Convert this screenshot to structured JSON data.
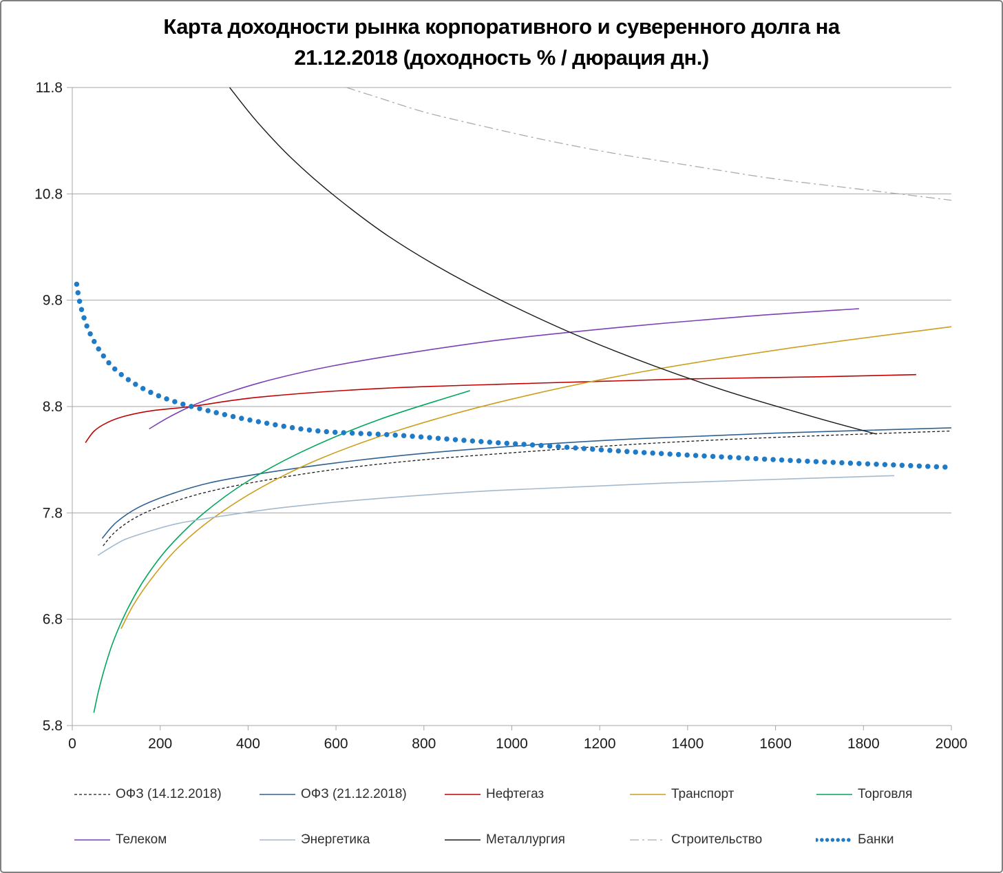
{
  "title": {
    "line1": "Карта доходности рынка корпоративного и суверенного долга на",
    "line2": "21.12.2018 (доходность % / дюрация дн.)"
  },
  "chart_data": {
    "type": "line",
    "title": "Карта доходности рынка корпоративного и суверенного долга на 21.12.2018 (доходность % / дюрация дн.)",
    "xlabel": "",
    "ylabel": "",
    "xlim": [
      0,
      2000
    ],
    "ylim": [
      5.8,
      11.8
    ],
    "x_ticks": [
      0,
      200,
      400,
      600,
      800,
      1000,
      1200,
      1400,
      1600,
      1800,
      2000
    ],
    "y_ticks": [
      5.8,
      6.8,
      7.8,
      8.8,
      9.8,
      10.8,
      11.8
    ],
    "grid": "horizontal",
    "grid_color": "#A6A6A6",
    "axis_color": "#A6A6A6",
    "legend_position": "bottom",
    "series": [
      {
        "name": "ОФЗ (14.12.2018)",
        "color": "#1A1A1A",
        "width": 1.3,
        "dash": "4 3",
        "marker": "none",
        "points": [
          [
            70,
            7.49
          ],
          [
            100,
            7.63
          ],
          [
            150,
            7.77
          ],
          [
            220,
            7.89
          ],
          [
            310,
            8.0
          ],
          [
            430,
            8.1
          ],
          [
            600,
            8.21
          ],
          [
            800,
            8.3
          ],
          [
            1050,
            8.38
          ],
          [
            1300,
            8.45
          ],
          [
            1600,
            8.51
          ],
          [
            2000,
            8.57
          ]
        ]
      },
      {
        "name": "ОФЗ (21.12.2018)",
        "color": "#2E6191",
        "width": 1.6,
        "dash": "",
        "marker": "none",
        "points": [
          [
            68,
            7.56
          ],
          [
            100,
            7.71
          ],
          [
            150,
            7.85
          ],
          [
            220,
            7.97
          ],
          [
            310,
            8.08
          ],
          [
            430,
            8.17
          ],
          [
            600,
            8.27
          ],
          [
            800,
            8.36
          ],
          [
            1050,
            8.44
          ],
          [
            1300,
            8.5
          ],
          [
            1600,
            8.55
          ],
          [
            2000,
            8.6
          ]
        ]
      },
      {
        "name": "Нефтегаз",
        "color": "#C00000",
        "width": 1.6,
        "dash": "",
        "marker": "none",
        "points": [
          [
            30,
            8.46
          ],
          [
            50,
            8.57
          ],
          [
            80,
            8.65
          ],
          [
            120,
            8.71
          ],
          [
            180,
            8.76
          ],
          [
            270,
            8.8
          ],
          [
            430,
            8.89
          ],
          [
            700,
            8.97
          ],
          [
            1060,
            9.02
          ],
          [
            1400,
            9.06
          ],
          [
            1700,
            9.08
          ],
          [
            1920,
            9.1
          ]
        ]
      },
      {
        "name": "Транспорт",
        "color": "#CC9E1A",
        "width": 1.6,
        "dash": "",
        "marker": "none",
        "points": [
          [
            111,
            6.71
          ],
          [
            140,
            6.94
          ],
          [
            180,
            7.18
          ],
          [
            240,
            7.47
          ],
          [
            320,
            7.75
          ],
          [
            430,
            8.04
          ],
          [
            570,
            8.32
          ],
          [
            760,
            8.6
          ],
          [
            1000,
            8.87
          ],
          [
            1300,
            9.13
          ],
          [
            1650,
            9.36
          ],
          [
            2000,
            9.55
          ]
        ]
      },
      {
        "name": "Торговля",
        "color": "#00A65C",
        "width": 1.6,
        "dash": "",
        "marker": "none",
        "points": [
          [
            49,
            5.92
          ],
          [
            60,
            6.13
          ],
          [
            75,
            6.36
          ],
          [
            95,
            6.61
          ],
          [
            125,
            6.89
          ],
          [
            165,
            7.18
          ],
          [
            220,
            7.48
          ],
          [
            300,
            7.8
          ],
          [
            400,
            8.1
          ],
          [
            530,
            8.39
          ],
          [
            700,
            8.68
          ],
          [
            905,
            8.95
          ]
        ]
      },
      {
        "name": "Телеком",
        "color": "#7B3FB5",
        "width": 1.6,
        "dash": "",
        "marker": "none",
        "points": [
          [
            175,
            8.59
          ],
          [
            220,
            8.7
          ],
          [
            280,
            8.82
          ],
          [
            360,
            8.94
          ],
          [
            460,
            9.06
          ],
          [
            590,
            9.18
          ],
          [
            760,
            9.3
          ],
          [
            980,
            9.43
          ],
          [
            1260,
            9.55
          ],
          [
            1540,
            9.65
          ],
          [
            1790,
            9.72
          ]
        ]
      },
      {
        "name": "Энергетика",
        "color": "#A3B9CE",
        "width": 1.6,
        "dash": "",
        "marker": "none",
        "points": [
          [
            58,
            7.4
          ],
          [
            85,
            7.47
          ],
          [
            120,
            7.55
          ],
          [
            170,
            7.62
          ],
          [
            240,
            7.7
          ],
          [
            340,
            7.77
          ],
          [
            480,
            7.85
          ],
          [
            680,
            7.93
          ],
          [
            960,
            8.01
          ],
          [
            1350,
            8.08
          ],
          [
            1870,
            8.15
          ]
        ]
      },
      {
        "name": "Металлургия",
        "color": "#1A1A1A",
        "width": 1.4,
        "dash": "",
        "marker": "none",
        "points": [
          [
            358,
            11.8
          ],
          [
            420,
            11.48
          ],
          [
            500,
            11.13
          ],
          [
            600,
            10.77
          ],
          [
            720,
            10.4
          ],
          [
            860,
            10.05
          ],
          [
            1030,
            9.69
          ],
          [
            1230,
            9.33
          ],
          [
            1470,
            8.97
          ],
          [
            1680,
            8.71
          ],
          [
            1830,
            8.54
          ]
        ]
      },
      {
        "name": "Строительство",
        "color": "#ABABAB",
        "width": 1.3,
        "dash": "13 5 3 5",
        "marker": "none",
        "points": [
          [
            624,
            11.8
          ],
          [
            700,
            11.7
          ],
          [
            800,
            11.57
          ],
          [
            920,
            11.45
          ],
          [
            1060,
            11.32
          ],
          [
            1220,
            11.19
          ],
          [
            1400,
            11.07
          ],
          [
            1600,
            10.94
          ],
          [
            1800,
            10.84
          ],
          [
            2000,
            10.74
          ]
        ]
      },
      {
        "name": "Банки",
        "color": "#1E7BC8",
        "width": 7.5,
        "dash": "0 12.5",
        "marker": "dots",
        "linecap": "round",
        "points": [
          [
            10,
            9.95
          ],
          [
            15,
            9.82
          ],
          [
            22,
            9.7
          ],
          [
            32,
            9.57
          ],
          [
            46,
            9.44
          ],
          [
            65,
            9.31
          ],
          [
            90,
            9.18
          ],
          [
            125,
            9.06
          ],
          [
            170,
            8.95
          ],
          [
            230,
            8.85
          ],
          [
            310,
            8.76
          ],
          [
            420,
            8.66
          ],
          [
            560,
            8.57
          ],
          [
            740,
            8.53
          ],
          [
            930,
            8.47
          ],
          [
            1080,
            8.43
          ],
          [
            1290,
            8.37
          ],
          [
            1650,
            8.29
          ],
          [
            1990,
            8.23
          ]
        ]
      }
    ]
  }
}
